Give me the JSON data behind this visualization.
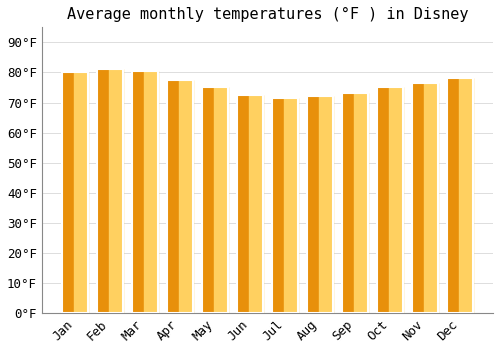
{
  "title": "Average monthly temperatures (°F ) in Disney",
  "categories": [
    "Jan",
    "Feb",
    "Mar",
    "Apr",
    "May",
    "Jun",
    "Jul",
    "Aug",
    "Sep",
    "Oct",
    "Nov",
    "Dec"
  ],
  "values": [
    80,
    81,
    80.5,
    77.5,
    75,
    72.5,
    71.5,
    72,
    73,
    75,
    76.5,
    78
  ],
  "bar_color_left": "#F5A623",
  "bar_color_right": "#FFC84A",
  "bar_edge_color": "#FFFFFF",
  "background_color": "#FFFFFF",
  "plot_bg_color": "#FFFFFF",
  "grid_color": "#DDDDDD",
  "ytick_labels": [
    "0°F",
    "10°F",
    "20°F",
    "30°F",
    "40°F",
    "50°F",
    "60°F",
    "70°F",
    "80°F",
    "90°F"
  ],
  "ytick_values": [
    0,
    10,
    20,
    30,
    40,
    50,
    60,
    70,
    80,
    90
  ],
  "ylim": [
    0,
    95
  ],
  "title_fontsize": 11,
  "tick_fontsize": 9,
  "font_family": "monospace",
  "bar_width": 0.72
}
